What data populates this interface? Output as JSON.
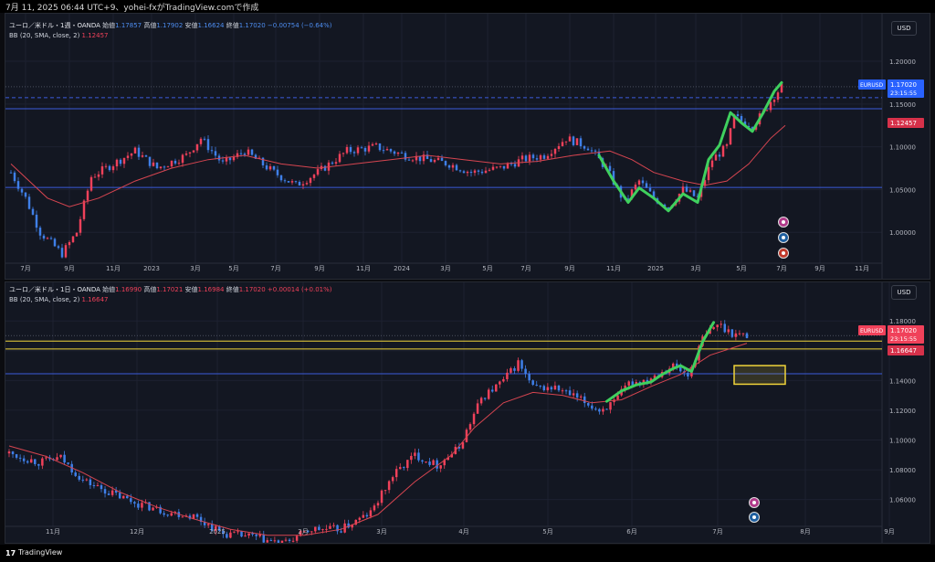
{
  "top_bar": {
    "text": "7月 11, 2025 06:44 UTC+9、yohei-fxがTradingView.comで作成"
  },
  "footer": {
    "brand": "TradingView",
    "logo_glyph": "17"
  },
  "colors": {
    "bg": "#131722",
    "up": "#f0415a",
    "down": "#3f7fe8",
    "bb": "#d64550",
    "swing": "#3fd05e",
    "level": "#3b5bdb",
    "yellow": "#f0d43a"
  },
  "chart_data": [
    {
      "type": "candlestick",
      "title": "ユーロ／米ドル・1週・OANDA",
      "symbol": "EURUSD",
      "quote": {
        "open_label": "始値",
        "open": "1.17857",
        "high_label": "高値",
        "high": "1.17902",
        "low_label": "安値",
        "low": "1.16624",
        "close_label": "終値",
        "close": "1.17020",
        "change": "−0.00754 (−0.64%)"
      },
      "indicator": {
        "label": "BB (20, SMA, close, 2)",
        "value": "1.12457"
      },
      "currency": "USD",
      "ylim": [
        0.965,
        1.215
      ],
      "y_ticks": [
        "1.20000",
        "1.15000",
        "1.10000",
        "1.05000",
        "1.00000"
      ],
      "x_ticks": [
        "7月",
        "9月",
        "11月",
        "2023",
        "3月",
        "5月",
        "7月",
        "9月",
        "11月",
        "2024",
        "3月",
        "5月",
        "7月",
        "9月",
        "11月",
        "2025",
        "3月",
        "5月",
        "7月",
        "9月",
        "11月"
      ],
      "price_label": {
        "symbol": "EURUSD",
        "price": "1.17020",
        "timer": "23:15:55"
      },
      "bb_label": "1.12457",
      "key_points": [
        [
          0,
          1.07
        ],
        [
          4,
          1.04
        ],
        [
          8,
          1.0
        ],
        [
          14,
          0.975
        ],
        [
          18,
          1.0
        ],
        [
          22,
          1.065
        ],
        [
          28,
          1.08
        ],
        [
          34,
          1.095
        ],
        [
          40,
          1.075
        ],
        [
          48,
          1.09
        ],
        [
          52,
          1.11
        ],
        [
          58,
          1.08
        ],
        [
          64,
          1.095
        ],
        [
          72,
          1.07
        ],
        [
          78,
          1.055
        ],
        [
          84,
          1.07
        ],
        [
          92,
          1.095
        ],
        [
          100,
          1.1
        ],
        [
          108,
          1.09
        ],
        [
          114,
          1.085
        ],
        [
          120,
          1.08
        ],
        [
          126,
          1.07
        ],
        [
          134,
          1.075
        ],
        [
          140,
          1.085
        ],
        [
          146,
          1.09
        ],
        [
          152,
          1.11
        ],
        [
          158,
          1.1
        ],
        [
          163,
          1.075
        ],
        [
          168,
          1.035
        ],
        [
          172,
          1.06
        ],
        [
          176,
          1.04
        ],
        [
          180,
          1.03
        ],
        [
          184,
          1.05
        ],
        [
          188,
          1.04
        ],
        [
          192,
          1.085
        ],
        [
          196,
          1.1
        ],
        [
          198,
          1.135
        ],
        [
          200,
          1.13
        ],
        [
          203,
          1.125
        ],
        [
          206,
          1.14
        ],
        [
          209,
          1.16
        ],
        [
          211,
          1.17
        ]
      ],
      "bb_points": [
        [
          0,
          1.08
        ],
        [
          10,
          1.04
        ],
        [
          16,
          1.03
        ],
        [
          24,
          1.04
        ],
        [
          34,
          1.06
        ],
        [
          44,
          1.075
        ],
        [
          54,
          1.085
        ],
        [
          64,
          1.09
        ],
        [
          74,
          1.08
        ],
        [
          84,
          1.075
        ],
        [
          94,
          1.08
        ],
        [
          104,
          1.085
        ],
        [
          114,
          1.09
        ],
        [
          124,
          1.085
        ],
        [
          134,
          1.08
        ],
        [
          144,
          1.083
        ],
        [
          154,
          1.09
        ],
        [
          164,
          1.095
        ],
        [
          170,
          1.085
        ],
        [
          176,
          1.07
        ],
        [
          184,
          1.06
        ],
        [
          190,
          1.055
        ],
        [
          196,
          1.06
        ],
        [
          202,
          1.08
        ],
        [
          208,
          1.11
        ],
        [
          212,
          1.125
        ]
      ],
      "swing_points": [
        [
          161,
          1.09
        ],
        [
          165,
          1.06
        ],
        [
          169,
          1.035
        ],
        [
          172,
          1.052
        ],
        [
          176,
          1.04
        ],
        [
          180,
          1.025
        ],
        [
          184,
          1.045
        ],
        [
          188,
          1.035
        ],
        [
          191,
          1.085
        ],
        [
          194,
          1.102
        ],
        [
          197,
          1.14
        ],
        [
          200,
          1.128
        ],
        [
          203,
          1.118
        ],
        [
          206,
          1.14
        ],
        [
          209,
          1.165
        ],
        [
          211,
          1.175
        ]
      ],
      "h_levels": [
        1.1575,
        1.1445,
        1.0525
      ]
    },
    {
      "type": "candlestick",
      "title": "ユーロ／米ドル・1日・OANDA",
      "symbol": "EURUSD",
      "quote": {
        "open_label": "始値",
        "open": "1.16990",
        "high_label": "高値",
        "high": "1.17021",
        "low_label": "安値",
        "low": "1.16984",
        "close_label": "終値",
        "close": "1.17020",
        "change": "+0.00014 (+0.01%)"
      },
      "indicator": {
        "label": "BB (20, SMA, close, 2)",
        "value": "1.16647"
      },
      "currency": "USD",
      "ylim": [
        1.0475,
        1.1875
      ],
      "y_ticks": [
        "1.18000",
        "1.16000",
        "1.14000",
        "1.12000",
        "1.10000",
        "1.08000",
        "1.06000"
      ],
      "x_ticks": [
        "11月",
        "12月",
        "2025",
        "2月",
        "3月",
        "4月",
        "5月",
        "6月",
        "7月",
        "8月",
        "9月"
      ],
      "price_label": {
        "symbol": "EURUSD",
        "price": "1.17020",
        "timer": "23:15:55"
      },
      "bb_label": "1.16647",
      "key_points": [
        [
          0,
          1.091
        ],
        [
          8,
          1.085
        ],
        [
          14,
          1.088
        ],
        [
          20,
          1.073
        ],
        [
          26,
          1.066
        ],
        [
          34,
          1.058
        ],
        [
          42,
          1.052
        ],
        [
          50,
          1.049
        ],
        [
          58,
          1.037
        ],
        [
          66,
          1.035
        ],
        [
          74,
          1.03
        ],
        [
          82,
          1.04
        ],
        [
          90,
          1.04
        ],
        [
          98,
          1.051
        ],
        [
          104,
          1.076
        ],
        [
          110,
          1.09
        ],
        [
          116,
          1.083
        ],
        [
          122,
          1.095
        ],
        [
          128,
          1.128
        ],
        [
          134,
          1.14
        ],
        [
          138,
          1.152
        ],
        [
          142,
          1.135
        ],
        [
          148,
          1.135
        ],
        [
          154,
          1.128
        ],
        [
          160,
          1.12
        ],
        [
          164,
          1.125
        ],
        [
          168,
          1.138
        ],
        [
          172,
          1.14
        ],
        [
          176,
          1.145
        ],
        [
          180,
          1.15
        ],
        [
          184,
          1.143
        ],
        [
          188,
          1.168
        ],
        [
          192,
          1.178
        ],
        [
          196,
          1.172
        ],
        [
          200,
          1.17
        ]
      ],
      "bb_points": [
        [
          0,
          1.096
        ],
        [
          10,
          1.089
        ],
        [
          20,
          1.078
        ],
        [
          30,
          1.065
        ],
        [
          40,
          1.055
        ],
        [
          50,
          1.047
        ],
        [
          60,
          1.04
        ],
        [
          70,
          1.036
        ],
        [
          80,
          1.036
        ],
        [
          90,
          1.04
        ],
        [
          100,
          1.05
        ],
        [
          110,
          1.072
        ],
        [
          120,
          1.09
        ],
        [
          126,
          1.108
        ],
        [
          134,
          1.125
        ],
        [
          142,
          1.132
        ],
        [
          150,
          1.13
        ],
        [
          158,
          1.125
        ],
        [
          166,
          1.127
        ],
        [
          174,
          1.136
        ],
        [
          182,
          1.144
        ],
        [
          190,
          1.157
        ],
        [
          200,
          1.165
        ]
      ],
      "swing_points": [
        [
          162,
          1.126
        ],
        [
          166,
          1.133
        ],
        [
          170,
          1.137
        ],
        [
          174,
          1.139
        ],
        [
          177,
          1.144
        ],
        [
          180,
          1.148
        ],
        [
          182,
          1.15
        ],
        [
          185,
          1.146
        ],
        [
          188,
          1.166
        ],
        [
          191,
          1.179
        ]
      ],
      "h_levels": [
        1.1665,
        1.1612,
        1.1445
      ],
      "zone": {
        "y_top": 1.15,
        "y_bottom": 1.1375
      }
    }
  ]
}
